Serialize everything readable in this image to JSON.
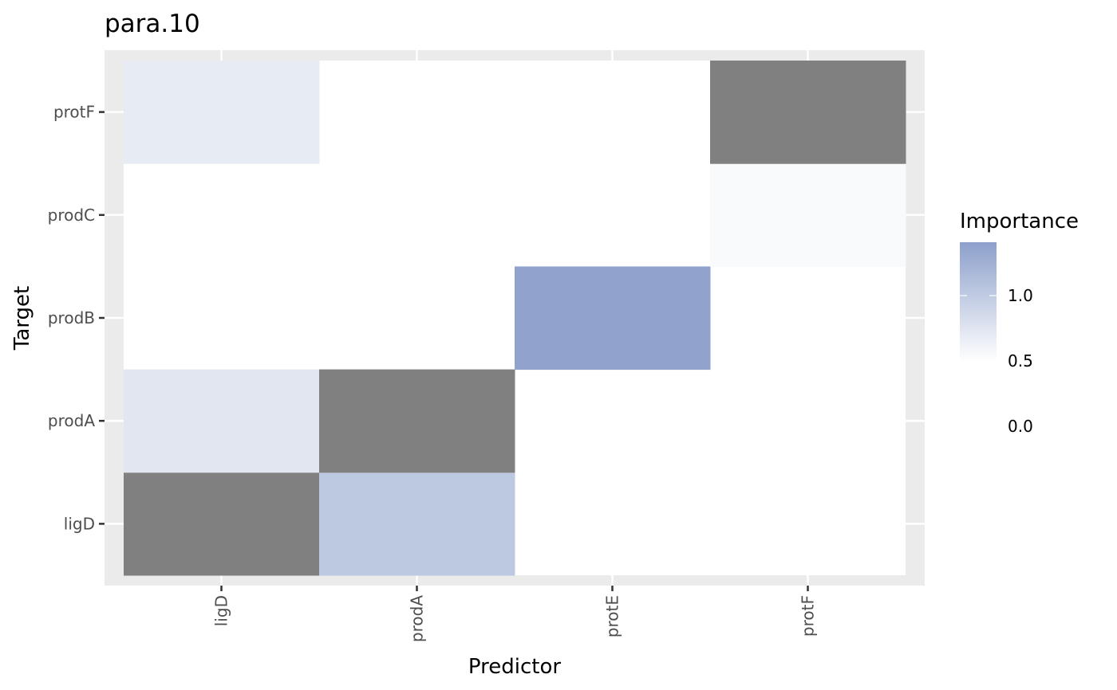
{
  "chart_data": {
    "type": "heatmap",
    "title": "para.10",
    "xlabel": "Predictor",
    "ylabel": "Target",
    "x_categories": [
      "ligD",
      "prodA",
      "protE",
      "protF"
    ],
    "y_categories": [
      "ligD",
      "prodA",
      "prodB",
      "prodC",
      "protF"
    ],
    "cells": [
      {
        "x": "ligD",
        "y": "ligD",
        "value": null
      },
      {
        "x": "prodA",
        "y": "ligD",
        "value": 1.05
      },
      {
        "x": "ligD",
        "y": "prodA",
        "value": 0.75
      },
      {
        "x": "prodA",
        "y": "prodA",
        "value": null
      },
      {
        "x": "protE",
        "y": "prodB",
        "value": 1.42
      },
      {
        "x": "protF",
        "y": "prodC",
        "value": 0.55
      },
      {
        "x": "ligD",
        "y": "protF",
        "value": 0.7
      },
      {
        "x": "protF",
        "y": "protF",
        "value": null
      }
    ],
    "legend": {
      "title": "Importance",
      "labels": [
        "1.0",
        "0.5",
        "0.0"
      ],
      "placement": "right"
    },
    "color_scale": {
      "low": "#ffffff",
      "high": "#8da0cb",
      "min": 0.5,
      "max": 1.45,
      "na_color": "#808080"
    },
    "panel_background": "#ebebeb",
    "grid": true
  }
}
